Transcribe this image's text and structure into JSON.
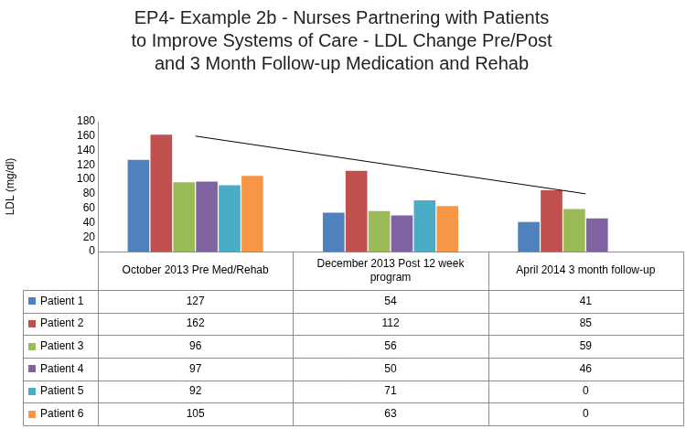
{
  "chart_data": {
    "type": "bar",
    "title": [
      "EP4- Example 2b - Nurses Partnering with Patients",
      "to Improve Systems of Care - LDL Change Pre/Post",
      "and 3 Month Follow-up Medication and Rehab"
    ],
    "y_label": "LDL (mg/dl)",
    "categories": [
      "October 2013 Pre Med/Rehab",
      "December 2013 Post 12 week program",
      "April 2014 3 month follow-up"
    ],
    "series": [
      {
        "name": "Patient 1",
        "color": "#4f81bd",
        "values": [
          127,
          54,
          41
        ]
      },
      {
        "name": "Patient 2",
        "color": "#c0504d",
        "values": [
          162,
          112,
          85
        ]
      },
      {
        "name": "Patient 3",
        "color": "#9bbb59",
        "values": [
          96,
          56,
          59
        ]
      },
      {
        "name": "Patient 4",
        "color": "#8064a2",
        "values": [
          97,
          50,
          46
        ]
      },
      {
        "name": "Patient 5",
        "color": "#4bacc6",
        "values": [
          92,
          71,
          0
        ]
      },
      {
        "name": "Patient 6",
        "color": "#f79646",
        "values": [
          105,
          63,
          0
        ]
      }
    ],
    "trend_line": {
      "color": "#000000",
      "values": [
        160,
        null,
        80
      ]
    },
    "ylim": [
      0,
      180
    ],
    "yticks": [
      0,
      20,
      40,
      60,
      80,
      100,
      120,
      140,
      160,
      180
    ],
    "grid": false
  }
}
